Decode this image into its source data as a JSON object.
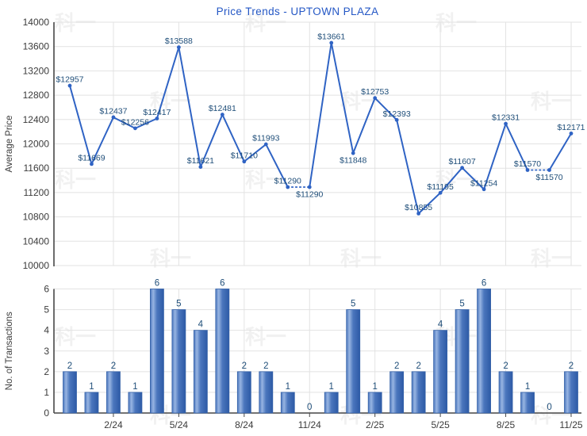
{
  "watermark": {
    "text": "科一"
  },
  "colors": {
    "title": "#2457c5",
    "line": "#2f63c4",
    "marker": "#2f63c4",
    "data_label": "#1f4e79",
    "tick_label": "#3b3b3b",
    "axis_line": "#474747",
    "gridline": "#e2e2e2",
    "bar_fill_main": "#4b76bd",
    "bar_fill_highlight": "#98b5e2",
    "bar_fill_dark": "#2d5aa6",
    "bar_stroke": "#3562a8",
    "watermark_color": "#000000"
  },
  "chart_data": [
    {
      "type": "line",
      "title": "Price Trends - UPTOWN PLAZA",
      "ylabel": "Average Price",
      "ylim": [
        10000,
        14000
      ],
      "ytick_step": 400,
      "ytick_labels": [
        "14000",
        "13600",
        "13200",
        "12800",
        "12400",
        "12000",
        "11600",
        "11200",
        "10800",
        "10400",
        "10000"
      ],
      "values": [
        12957,
        11669,
        12437,
        12256,
        12417,
        13588,
        11621,
        12481,
        11710,
        11993,
        11290,
        11290,
        13661,
        11848,
        12753,
        12393,
        10855,
        11195,
        11607,
        11254,
        12331,
        11570,
        11570,
        12171
      ],
      "point_labels": [
        "$12957",
        "$11669",
        "$12437",
        "$12256",
        "$12417",
        "$13588",
        "$11621",
        "$12481",
        "$11710",
        "$11993",
        "$11290",
        "$11290",
        "$13661",
        "$11848",
        "$12753",
        "$12393",
        "$10855",
        "$11195",
        "$11607",
        "$11254",
        "$12331",
        "$11570",
        "$11570",
        "$12171"
      ],
      "label_below_indices": [
        11,
        13,
        22
      ],
      "dotted_segment_start_indices": [
        10,
        21
      ],
      "xtick_labels": [
        "2/24",
        "5/24",
        "8/24",
        "11/24",
        "2/25",
        "5/25",
        "8/25",
        "11/25"
      ],
      "xtick_indices": [
        2,
        5,
        8,
        11,
        14,
        17,
        20,
        23
      ],
      "grid": true,
      "legend": "none"
    },
    {
      "type": "bar",
      "ylabel": "No. of Transactions",
      "ylim": [
        0,
        6
      ],
      "ytick_step": 1,
      "ytick_labels": [
        "6",
        "5",
        "4",
        "3",
        "2",
        "1",
        "0"
      ],
      "values": [
        2,
        1,
        2,
        1,
        6,
        5,
        4,
        6,
        2,
        2,
        1,
        0,
        1,
        5,
        1,
        2,
        2,
        4,
        5,
        6,
        2,
        1,
        0,
        2
      ],
      "xtick_labels": [
        "2/24",
        "5/24",
        "8/24",
        "11/24",
        "2/25",
        "5/25",
        "8/25",
        "11/25"
      ],
      "xtick_indices": [
        2,
        5,
        8,
        11,
        14,
        17,
        20,
        23
      ],
      "grid": true,
      "legend": "none"
    }
  ]
}
